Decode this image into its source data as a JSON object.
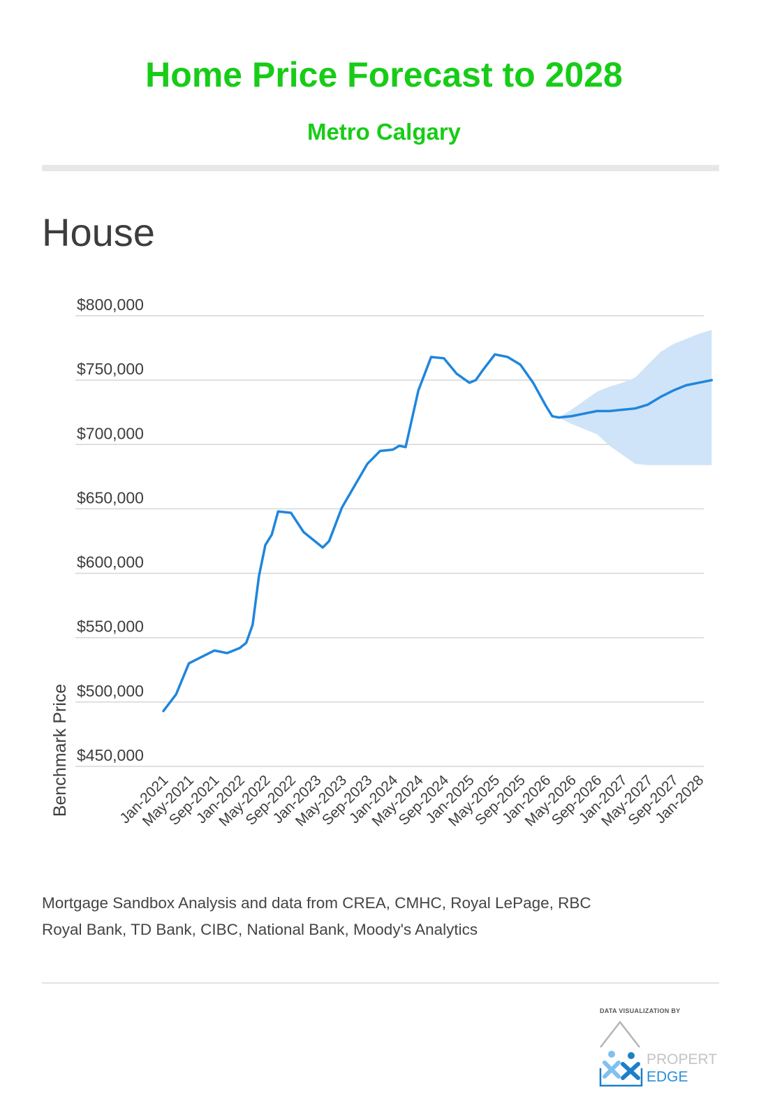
{
  "header": {
    "title": "Home Price Forecast to 2028",
    "subtitle": "Metro Calgary"
  },
  "section_title": "House",
  "chart_data": {
    "type": "line",
    "title": "Home Price Forecast to 2028",
    "subtitle": "Metro Calgary",
    "xlabel": "",
    "ylabel": "Benchmark Price",
    "ylim": [
      450000,
      800000
    ],
    "y_ticks": [
      450000,
      500000,
      550000,
      600000,
      650000,
      700000,
      750000,
      800000
    ],
    "y_tick_labels": [
      "$450,000",
      "$500,000",
      "$550,000",
      "$600,000",
      "$650,000",
      "$700,000",
      "$750,000",
      "$800,000"
    ],
    "x_tick_labels": [
      "Jan-2021",
      "May-2021",
      "Sep-2021",
      "Jan-2022",
      "May-2022",
      "Sep-2022",
      "Jan-2023",
      "May-2023",
      "Sep-2023",
      "Jan-2024",
      "May-2024",
      "Sep-2024",
      "Jan-2025",
      "May-2025",
      "Sep-2025",
      "Jan-2026",
      "May-2026",
      "Sep-2026",
      "Jan-2027",
      "May-2027",
      "Sep-2027",
      "Jan-2028"
    ],
    "grid": true,
    "colors": {
      "line": "#1f86dd",
      "band": "#cfe4f8",
      "grid": "#d6d6d6",
      "title": "#17cc17"
    },
    "series": [
      {
        "x": [
          "2021-01",
          "2021-03",
          "2021-05",
          "2021-07",
          "2021-09",
          "2021-11",
          "2022-01",
          "2022-02",
          "2022-03",
          "2022-04",
          "2022-05",
          "2022-06",
          "2022-07",
          "2022-09",
          "2022-11",
          "2023-01",
          "2023-02",
          "2023-03",
          "2023-05",
          "2023-07",
          "2023-09",
          "2023-11",
          "2024-01",
          "2024-02",
          "2024-03",
          "2024-05",
          "2024-07",
          "2024-09",
          "2024-11",
          "2025-01",
          "2025-02",
          "2025-03",
          "2025-05",
          "2025-07",
          "2025-09",
          "2025-11",
          "2026-01",
          "2026-02",
          "2026-03"
        ],
        "values": [
          493000,
          506000,
          530000,
          535000,
          540000,
          538000,
          542000,
          546000,
          560000,
          598000,
          622000,
          630000,
          648000,
          647000,
          632000,
          624000,
          620000,
          625000,
          651000,
          668000,
          685000,
          695000,
          696000,
          699000,
          698000,
          742000,
          768000,
          767000,
          755000,
          748000,
          750000,
          757000,
          770000,
          768000,
          762000,
          748000,
          730000,
          722000,
          721000
        ]
      },
      {
        "x": [
          "2026-03",
          "2026-05",
          "2026-07",
          "2026-09",
          "2026-11",
          "2027-01",
          "2027-03",
          "2027-05",
          "2027-07",
          "2027-09",
          "2027-11",
          "2028-01",
          "2028-03"
        ],
        "values": [
          721000,
          722000,
          724000,
          726000,
          726000,
          727000,
          728000,
          731000,
          737000,
          742000,
          746000,
          748000,
          750000
        ],
        "band_upper": [
          721000,
          727000,
          734000,
          741000,
          745000,
          748000,
          752000,
          762000,
          772000,
          778000,
          782000,
          786000,
          789000
        ],
        "band_lower": [
          721000,
          716000,
          712000,
          708000,
          699000,
          692000,
          685000,
          684000,
          684000,
          684000,
          684000,
          684000,
          684000
        ]
      }
    ]
  },
  "footer": {
    "credit_line1": "Mortgage Sandbox Analysis and data from CREA, CMHC, Royal LePage, RBC",
    "credit_line2": "Royal Bank, TD Bank, CIBC, National Bank, Moody's Analytics",
    "viz_by": "DATA VISUALIZATION BY",
    "logo_text_1": "PROPERTI",
    "logo_text_2": "EDGE",
    "logo_colors": {
      "house": "#b5b5b5",
      "figure_dark": "#1c7fcb",
      "figure_light": "#7fc1ef",
      "text_1": "#c4c4c4",
      "text_2": "#2b8fd8"
    }
  }
}
